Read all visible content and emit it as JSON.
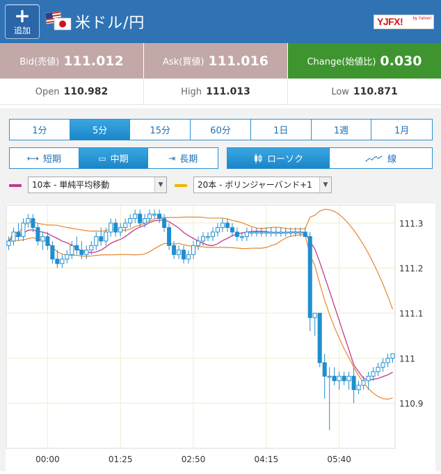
{
  "header": {
    "add_label": "追加",
    "pair_title": "米ドル/円",
    "logo_text": "YJFX!",
    "logo_sub": "by Yahoo!",
    "bg_color": "#2f73b5"
  },
  "quotes": {
    "bid": {
      "label": "Bid(売値)",
      "value": "111.012"
    },
    "ask": {
      "label": "Ask(買値)",
      "value": "111.016"
    },
    "change": {
      "label": "Change(始値比)",
      "value": "0.030"
    }
  },
  "stats": {
    "open": {
      "label": "Open",
      "value": "110.982"
    },
    "high": {
      "label": "High",
      "value": "111.013"
    },
    "low": {
      "label": "Low",
      "value": "110.871"
    }
  },
  "timeframes": {
    "items": [
      "1分",
      "5分",
      "15分",
      "60分",
      "1日",
      "1週",
      "1月"
    ],
    "active": "5分"
  },
  "terms": {
    "items": [
      {
        "icon": "⇔",
        "label": "短期"
      },
      {
        "icon": "▭",
        "label": "中期"
      },
      {
        "icon": "⇥",
        "label": "長期"
      }
    ],
    "active": "中期"
  },
  "chart_types": {
    "items": [
      {
        "icon": "candlestick-icon",
        "label": "ローソク"
      },
      {
        "icon": "line-icon",
        "label": "線"
      }
    ],
    "active": "ローソク"
  },
  "indicators": {
    "ma": {
      "value": "10本 - 単純平均移動",
      "color": "#c2398c"
    },
    "bb": {
      "value": "20本 - ボリンジャーバンド+1",
      "color": "#f0b400"
    }
  },
  "chart_data": {
    "type": "candlestick",
    "x_ticks": [
      "00:00",
      "01:25",
      "02:50",
      "04:15",
      "05:40"
    ],
    "y_ticks": [
      111.3,
      111.2,
      111.1,
      111,
      110.9
    ],
    "y_tick_labels": [
      "111.3",
      "111.2",
      "111.1",
      "111",
      "110.9"
    ],
    "ylim": [
      110.8,
      111.34
    ],
    "candle_count": 80,
    "x_tick_candle_index": [
      8,
      23,
      38,
      53,
      68
    ],
    "candles": [
      [
        111.25,
        111.27,
        111.24,
        111.26
      ],
      [
        111.26,
        111.29,
        111.25,
        111.28
      ],
      [
        111.28,
        111.3,
        111.26,
        111.27
      ],
      [
        111.27,
        111.31,
        111.26,
        111.3
      ],
      [
        111.3,
        111.32,
        111.29,
        111.31
      ],
      [
        111.31,
        111.32,
        111.28,
        111.29
      ],
      [
        111.29,
        111.3,
        111.25,
        111.26
      ],
      [
        111.26,
        111.28,
        111.24,
        111.27
      ],
      [
        111.27,
        111.28,
        111.24,
        111.25
      ],
      [
        111.25,
        111.26,
        111.21,
        111.22
      ],
      [
        111.22,
        111.24,
        111.2,
        111.21
      ],
      [
        111.21,
        111.23,
        111.2,
        111.22
      ],
      [
        111.22,
        111.24,
        111.21,
        111.23
      ],
      [
        111.23,
        111.26,
        111.22,
        111.25
      ],
      [
        111.25,
        111.27,
        111.23,
        111.24
      ],
      [
        111.24,
        111.26,
        111.22,
        111.23
      ],
      [
        111.23,
        111.25,
        111.22,
        111.24
      ],
      [
        111.24,
        111.26,
        111.23,
        111.25
      ],
      [
        111.25,
        111.28,
        111.24,
        111.27
      ],
      [
        111.27,
        111.29,
        111.25,
        111.26
      ],
      [
        111.26,
        111.29,
        111.25,
        111.28
      ],
      [
        111.28,
        111.31,
        111.27,
        111.3
      ],
      [
        111.3,
        111.31,
        111.27,
        111.28
      ],
      [
        111.28,
        111.3,
        111.27,
        111.29
      ],
      [
        111.29,
        111.31,
        111.28,
        111.3
      ],
      [
        111.3,
        111.32,
        111.29,
        111.31
      ],
      [
        111.31,
        111.33,
        111.3,
        111.32
      ],
      [
        111.32,
        111.33,
        111.29,
        111.3
      ],
      [
        111.3,
        111.32,
        111.29,
        111.31
      ],
      [
        111.31,
        111.33,
        111.3,
        111.32
      ],
      [
        111.32,
        111.33,
        111.31,
        111.32
      ],
      [
        111.32,
        111.33,
        111.3,
        111.31
      ],
      [
        111.31,
        111.32,
        111.28,
        111.29
      ],
      [
        111.29,
        111.3,
        111.24,
        111.25
      ],
      [
        111.25,
        111.26,
        111.22,
        111.23
      ],
      [
        111.23,
        111.25,
        111.22,
        111.24
      ],
      [
        111.24,
        111.25,
        111.21,
        111.22
      ],
      [
        111.22,
        111.24,
        111.21,
        111.23
      ],
      [
        111.23,
        111.26,
        111.22,
        111.25
      ],
      [
        111.25,
        111.27,
        111.24,
        111.26
      ],
      [
        111.26,
        111.28,
        111.25,
        111.27
      ],
      [
        111.27,
        111.28,
        111.26,
        111.27
      ],
      [
        111.27,
        111.29,
        111.26,
        111.28
      ],
      [
        111.28,
        111.3,
        111.27,
        111.29
      ],
      [
        111.29,
        111.31,
        111.28,
        111.3
      ],
      [
        111.3,
        111.31,
        111.28,
        111.29
      ],
      [
        111.29,
        111.3,
        111.27,
        111.28
      ],
      [
        111.28,
        111.29,
        111.26,
        111.27
      ],
      [
        111.27,
        111.28,
        111.26,
        111.27
      ],
      [
        111.27,
        111.29,
        111.26,
        111.28
      ],
      [
        111.28,
        111.29,
        111.27,
        111.28
      ],
      [
        111.28,
        111.29,
        111.27,
        111.28
      ],
      [
        111.28,
        111.29,
        111.27,
        111.28
      ],
      [
        111.28,
        111.29,
        111.27,
        111.28
      ],
      [
        111.28,
        111.29,
        111.27,
        111.28
      ],
      [
        111.28,
        111.29,
        111.27,
        111.28
      ],
      [
        111.28,
        111.29,
        111.27,
        111.28
      ],
      [
        111.28,
        111.29,
        111.27,
        111.28
      ],
      [
        111.28,
        111.29,
        111.27,
        111.28
      ],
      [
        111.28,
        111.29,
        111.27,
        111.28
      ],
      [
        111.28,
        111.29,
        111.27,
        111.28
      ],
      [
        111.28,
        111.29,
        111.27,
        111.27
      ],
      [
        111.27,
        111.28,
        111.06,
        111.09
      ],
      [
        111.09,
        111.1,
        111.05,
        111.1
      ],
      [
        111.1,
        111.1,
        110.98,
        110.99
      ],
      [
        110.99,
        111.01,
        110.91,
        110.96
      ],
      [
        110.96,
        110.98,
        110.84,
        110.96
      ],
      [
        110.96,
        110.98,
        110.94,
        110.95
      ],
      [
        110.95,
        110.97,
        110.93,
        110.96
      ],
      [
        110.96,
        110.97,
        110.94,
        110.95
      ],
      [
        110.95,
        110.97,
        110.93,
        110.96
      ],
      [
        110.96,
        110.98,
        110.9,
        110.93
      ],
      [
        110.93,
        110.95,
        110.92,
        110.94
      ],
      [
        110.94,
        110.96,
        110.93,
        110.95
      ],
      [
        110.95,
        110.97,
        110.93,
        110.96
      ],
      [
        110.96,
        110.98,
        110.95,
        110.97
      ],
      [
        110.97,
        110.99,
        110.96,
        110.98
      ],
      [
        110.98,
        111.0,
        110.97,
        110.99
      ],
      [
        110.99,
        111.01,
        110.98,
        111.0
      ],
      [
        111.0,
        111.01,
        110.99,
        111.01
      ]
    ],
    "grid": true
  }
}
